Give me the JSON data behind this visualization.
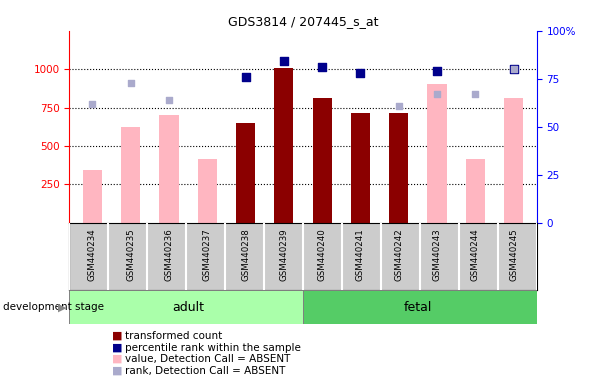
{
  "title": "GDS3814 / 207445_s_at",
  "samples": [
    "GSM440234",
    "GSM440235",
    "GSM440236",
    "GSM440237",
    "GSM440238",
    "GSM440239",
    "GSM440240",
    "GSM440241",
    "GSM440242",
    "GSM440243",
    "GSM440244",
    "GSM440245"
  ],
  "transformed_count": [
    null,
    null,
    null,
    null,
    650,
    1010,
    815,
    715,
    715,
    null,
    null,
    null
  ],
  "percentile_rank": [
    null,
    null,
    null,
    null,
    76,
    84,
    81,
    78,
    null,
    79,
    null,
    80
  ],
  "value_absent": [
    340,
    620,
    700,
    415,
    null,
    null,
    null,
    null,
    null,
    900,
    415,
    810
  ],
  "rank_absent": [
    62,
    73,
    64,
    null,
    null,
    null,
    null,
    null,
    61,
    67,
    67,
    80
  ],
  "ylim_left": [
    0,
    1250
  ],
  "ylim_right": [
    0,
    100
  ],
  "yticks_left": [
    250,
    500,
    750,
    1000
  ],
  "yticks_right": [
    0,
    25,
    50,
    75,
    100
  ],
  "bar_color_dark": "#8B0000",
  "bar_color_light": "#FFB6C1",
  "dot_color_dark": "#00008B",
  "dot_color_light": "#AAAACC",
  "adult_color": "#AAFFAA",
  "fetal_color": "#55CC66",
  "label_bg_color": "#CCCCCC",
  "legend_items": [
    {
      "color": "#8B0000",
      "label": "transformed count"
    },
    {
      "color": "#00008B",
      "label": "percentile rank within the sample"
    },
    {
      "color": "#FFB6C1",
      "label": "value, Detection Call = ABSENT"
    },
    {
      "color": "#AAAACC",
      "label": "rank, Detection Call = ABSENT"
    }
  ]
}
